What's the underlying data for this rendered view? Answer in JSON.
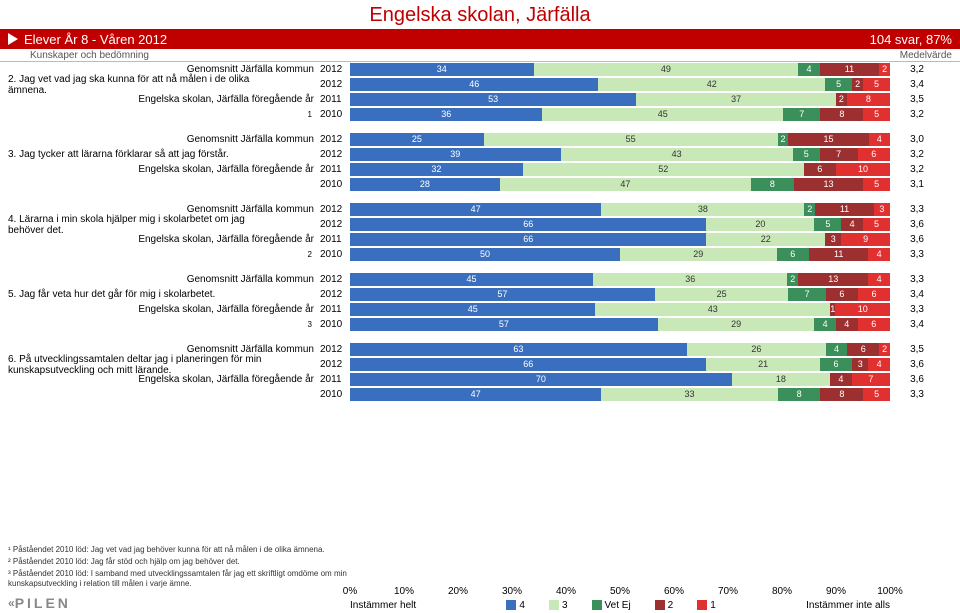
{
  "title": "Engelska skolan, Järfälla",
  "banner": {
    "left": "Elever År 8 - Våren 2012",
    "right": "104 svar, 87%"
  },
  "subheader": {
    "left": "Kunskaper och bedömning",
    "right": "Medelvärde"
  },
  "colors": {
    "c4": "#3a6fbf",
    "c3": "#c9e8b8",
    "cVE": "#3a8f5a",
    "c2": "#9c2f2f",
    "c1": "#e03030",
    "banner": "#c00000",
    "grid": "#dddddd"
  },
  "legend": {
    "left": "Instämmer helt",
    "right": "Instämmer inte alls",
    "items": [
      {
        "label": "4",
        "color": "#3a6fbf"
      },
      {
        "label": "3",
        "color": "#c9e8b8"
      },
      {
        "label": "Vet Ej",
        "color": "#3a8f5a"
      },
      {
        "label": "2",
        "color": "#9c2f2f"
      },
      {
        "label": "1",
        "color": "#e03030"
      }
    ]
  },
  "axis": {
    "ticks": [
      "0%",
      "10%",
      "20%",
      "30%",
      "40%",
      "50%",
      "60%",
      "70%",
      "80%",
      "90%",
      "100%"
    ]
  },
  "groups": [
    {
      "question_num": "2.",
      "question": "Jag vet vad jag ska kunna för att nå målen i de olika ämnena.",
      "rows": [
        {
          "label": "Genomsnitt Järfälla kommun",
          "year": "2012",
          "sup": "",
          "segs": [
            34,
            49,
            0,
            4,
            11,
            2
          ],
          "mean": "3,2"
        },
        {
          "label": "",
          "year": "2012",
          "sup": "",
          "segs": [
            46,
            42,
            0,
            5,
            2,
            5
          ],
          "mean": "3,4"
        },
        {
          "label": "Engelska skolan, Järfälla föregående år",
          "year": "2011",
          "sup": "",
          "segs": [
            53,
            37,
            0,
            0,
            2,
            8
          ],
          "mean": "3,5"
        },
        {
          "label": "",
          "year": "2010",
          "sup": "1",
          "segs": [
            36,
            45,
            0,
            7,
            8,
            5
          ],
          "mean": "3,2"
        }
      ]
    },
    {
      "question_num": "3.",
      "question": "Jag tycker att lärarna förklarar så att jag förstår.",
      "rows": [
        {
          "label": "Genomsnitt Järfälla kommun",
          "year": "2012",
          "sup": "",
          "segs": [
            25,
            55,
            0,
            2,
            15,
            4
          ],
          "mean": "3,0"
        },
        {
          "label": "",
          "year": "2012",
          "sup": "",
          "segs": [
            39,
            43,
            0,
            5,
            7,
            6
          ],
          "mean": "3,2"
        },
        {
          "label": "Engelska skolan, Järfälla föregående år",
          "year": "2011",
          "sup": "",
          "segs": [
            32,
            52,
            0,
            0,
            6,
            10
          ],
          "mean": "3,2"
        },
        {
          "label": "",
          "year": "2010",
          "sup": "",
          "segs": [
            28,
            47,
            0,
            8,
            13,
            5
          ],
          "mean": "3,1"
        }
      ]
    },
    {
      "question_num": "4.",
      "question": "Lärarna i min skola hjälper mig i skolarbetet om jag behöver det.",
      "rows": [
        {
          "label": "Genomsnitt Järfälla kommun",
          "year": "2012",
          "sup": "",
          "segs": [
            47,
            38,
            0,
            2,
            11,
            3
          ],
          "mean": "3,3"
        },
        {
          "label": "",
          "year": "2012",
          "sup": "",
          "segs": [
            66,
            20,
            0,
            5,
            4,
            5
          ],
          "mean": "3,6"
        },
        {
          "label": "Engelska skolan, Järfälla föregående år",
          "year": "2011",
          "sup": "",
          "segs": [
            66,
            22,
            0,
            0,
            3,
            9
          ],
          "mean": "3,6"
        },
        {
          "label": "",
          "year": "2010",
          "sup": "2",
          "segs": [
            50,
            29,
            0,
            6,
            11,
            4
          ],
          "mean": "3,3"
        }
      ]
    },
    {
      "question_num": "5.",
      "question": "Jag får veta hur det går för mig i skolarbetet.",
      "rows": [
        {
          "label": "Genomsnitt Järfälla kommun",
          "year": "2012",
          "sup": "",
          "segs": [
            45,
            36,
            0,
            2,
            13,
            4
          ],
          "mean": "3,3"
        },
        {
          "label": "",
          "year": "2012",
          "sup": "",
          "segs": [
            57,
            25,
            0,
            7,
            6,
            6
          ],
          "mean": "3,4"
        },
        {
          "label": "Engelska skolan, Järfälla föregående år",
          "year": "2011",
          "sup": "",
          "segs": [
            45,
            43,
            0,
            0,
            1,
            10
          ],
          "mean": "3,3"
        },
        {
          "label": "",
          "year": "2010",
          "sup": "3",
          "segs": [
            57,
            29,
            0,
            4,
            4,
            6
          ],
          "mean": "3,4"
        }
      ]
    },
    {
      "question_num": "6.",
      "question": "På utvecklingssamtalen deltar jag i planeringen för min kunskapsutveckling och mitt lärande.",
      "rows": [
        {
          "label": "Genomsnitt Järfälla kommun",
          "year": "2012",
          "sup": "",
          "segs": [
            63,
            26,
            0,
            4,
            6,
            2
          ],
          "mean": "3,5"
        },
        {
          "label": "",
          "year": "2012",
          "sup": "",
          "segs": [
            66,
            21,
            0,
            6,
            3,
            4
          ],
          "mean": "3,6"
        },
        {
          "label": "Engelska skolan, Järfälla föregående år",
          "year": "2011",
          "sup": "",
          "segs": [
            70,
            18,
            0,
            0,
            4,
            7
          ],
          "mean": "3,6"
        },
        {
          "label": "",
          "year": "2010",
          "sup": "",
          "segs": [
            47,
            33,
            0,
            8,
            8,
            5
          ],
          "mean": "3,3"
        }
      ]
    }
  ],
  "footnotes": [
    "¹ Påståendet 2010 löd: Jag vet vad jag behöver kunna för att nå målen i de olika ämnena.",
    "² Påståendet 2010 löd: Jag får stöd och hjälp om jag behöver det.",
    "³ Påståendet 2010 löd: I samband med utvecklingssamtalen får jag ett skriftligt omdöme om min kunskapsutveckling i relation till målen i varje ämne."
  ],
  "logo": "PILEN"
}
